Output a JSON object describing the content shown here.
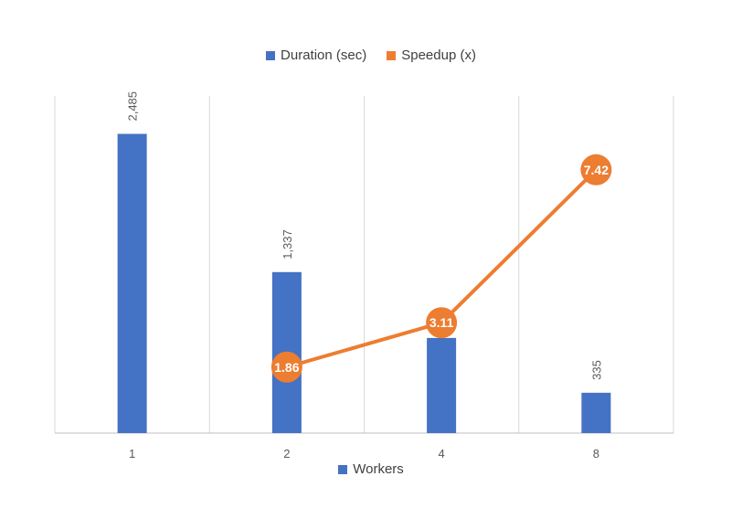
{
  "legend": {
    "duration_label": "Duration (sec)",
    "speedup_label": "Speedup (x)"
  },
  "colors": {
    "bar": "#4472C4",
    "line": "#ED7D31",
    "grid": "#D9D9D9",
    "axis": "#BFBFBF"
  },
  "chart_data": {
    "type": "bar",
    "categories": [
      "1",
      "2",
      "4",
      "8"
    ],
    "xlabel": "Workers",
    "series": [
      {
        "name": "Duration (sec)",
        "type": "bar",
        "values": [
          2485,
          1337,
          790,
          335
        ],
        "data_labels": [
          "2,485",
          "1,337",
          "",
          "335"
        ]
      },
      {
        "name": "Speedup (x)",
        "type": "line",
        "values": [
          null,
          1.86,
          3.11,
          7.42
        ],
        "data_labels": [
          "",
          "1.86",
          "3.11",
          "7.42"
        ]
      }
    ],
    "ylim": [
      0,
      2800
    ],
    "y2lim": [
      0,
      9.5
    ],
    "grid": "vertical",
    "legend_position": "top"
  }
}
